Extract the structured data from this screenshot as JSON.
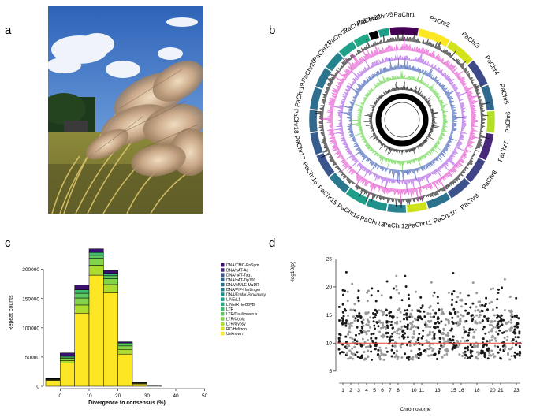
{
  "panels": {
    "a": "a",
    "b": "b",
    "c": "c",
    "d": "d"
  },
  "circos": {
    "chromosomes": [
      "PaChr1",
      "PaChr2",
      "PaChr3",
      "PaChr4",
      "PaChr5",
      "PaChr6",
      "PaChr7",
      "PaChr8",
      "PaChr9",
      "PaChr10",
      "PaChr11",
      "PaChr12",
      "PaChr13",
      "PaChr14",
      "PaChr15",
      "PaChr16",
      "PaChr17",
      "PaChr18",
      "PaChr19",
      "PaChr20",
      "PaChr21",
      "PaChr22",
      "PaChr23",
      "PaChr24",
      "PaChr25"
    ],
    "colors": [
      "#440154",
      "#fde725",
      "#d2e21b",
      "#3e4989",
      "#31688e",
      "#b5de2b",
      "#482878",
      "#414487",
      "#3b528b",
      "#2c728e",
      "#cde11d",
      "#26828e",
      "#21918c",
      "#1f9e89",
      "#2a788e",
      "#3a548c",
      "#365c8d",
      "#31688e",
      "#2e6e8e",
      "#2c738e",
      "#25838e",
      "#1fa088",
      "#22a884",
      "#000000",
      "#1f9e89"
    ],
    "tracks": [
      "#000000",
      "#e040c8",
      "#a64fe0",
      "#2e4fb0",
      "#58d23a",
      "#000000"
    ]
  },
  "chart_data": [
    {
      "type": "bar",
      "title": "",
      "xlabel": "Divergence to consensus (%)",
      "ylabel": "Repeat counts",
      "xlim": [
        -5,
        52
      ],
      "ylim": [
        0,
        240000
      ],
      "xticks": [
        "0",
        "10",
        "20",
        "30",
        "40",
        "50"
      ],
      "yticks": [
        "0",
        "50000",
        "100000",
        "150000",
        "200000"
      ],
      "bin_centers": [
        -2.5,
        2.5,
        7.5,
        12.5,
        17.5,
        22.5,
        27.5,
        32.5,
        37.5,
        42.5
      ],
      "legend": [
        "DNA/CMC-EnSpm",
        "DNA/hAT-Ac",
        "DNA/hAT-Tag1",
        "DNA/hAT-Tip100",
        "DNA/MULE-MuDR",
        "DNA/PIF-Harbinger",
        "DNA/TcMar-Stowaway",
        "LINE/L1",
        "LINE/RTE-BovB",
        "LTR",
        "LTR/Caulimovirus",
        "LTR/Copia",
        "LTR/Gypsy",
        "RC/Helitron",
        "Unknown"
      ],
      "legend_colors": [
        "#3b0f70",
        "#472c7a",
        "#3b528b",
        "#32648e",
        "#2c728e",
        "#26828e",
        "#21918c",
        "#1fa088",
        "#28ae80",
        "#3fbc73",
        "#5ec962",
        "#84d44b",
        "#addc30",
        "#d8e219",
        "#fde725"
      ],
      "series": [
        {
          "name": "Unknown",
          "values": [
            10000,
            40000,
            125000,
            190000,
            160000,
            55000,
            4000,
            0,
            0,
            0
          ]
        },
        {
          "name": "LTR/Gypsy",
          "values": [
            1000,
            4000,
            14000,
            17000,
            14000,
            8000,
            1000,
            0,
            0,
            0
          ]
        },
        {
          "name": "LTR/Copia",
          "values": [
            1000,
            4000,
            12000,
            12000,
            10000,
            6000,
            1000,
            0,
            0,
            0
          ]
        },
        {
          "name": "LTR/Caulimovirus",
          "values": [
            500,
            2000,
            8000,
            5000,
            5000,
            3000,
            500,
            0,
            0,
            0
          ]
        },
        {
          "name": "LTR",
          "values": [
            300,
            2000,
            6000,
            5000,
            4000,
            2000,
            300,
            0,
            0,
            0
          ]
        },
        {
          "name": "DNA/CMC-EnSpm",
          "values": [
            500,
            5000,
            8000,
            6000,
            5000,
            2000,
            300,
            400,
            0,
            0
          ]
        }
      ]
    },
    {
      "type": "scatter",
      "title": "",
      "xlabel": "Chromosome",
      "ylabel": "-log10(p)",
      "ylim": [
        4,
        27
      ],
      "yticks": [
        "5",
        "10",
        "15",
        "20",
        "25"
      ],
      "xticks": [
        "1",
        "2",
        "3",
        "4",
        "5",
        "6",
        "7",
        "8",
        "10",
        "11",
        "13",
        "15",
        "16",
        "18",
        "20",
        "21",
        "23"
      ],
      "threshold": 10,
      "threshold_color": "#e8413a",
      "chromosome_count": 23,
      "point_colors": [
        "#1a1a1a",
        "#9a9a9a"
      ]
    }
  ]
}
